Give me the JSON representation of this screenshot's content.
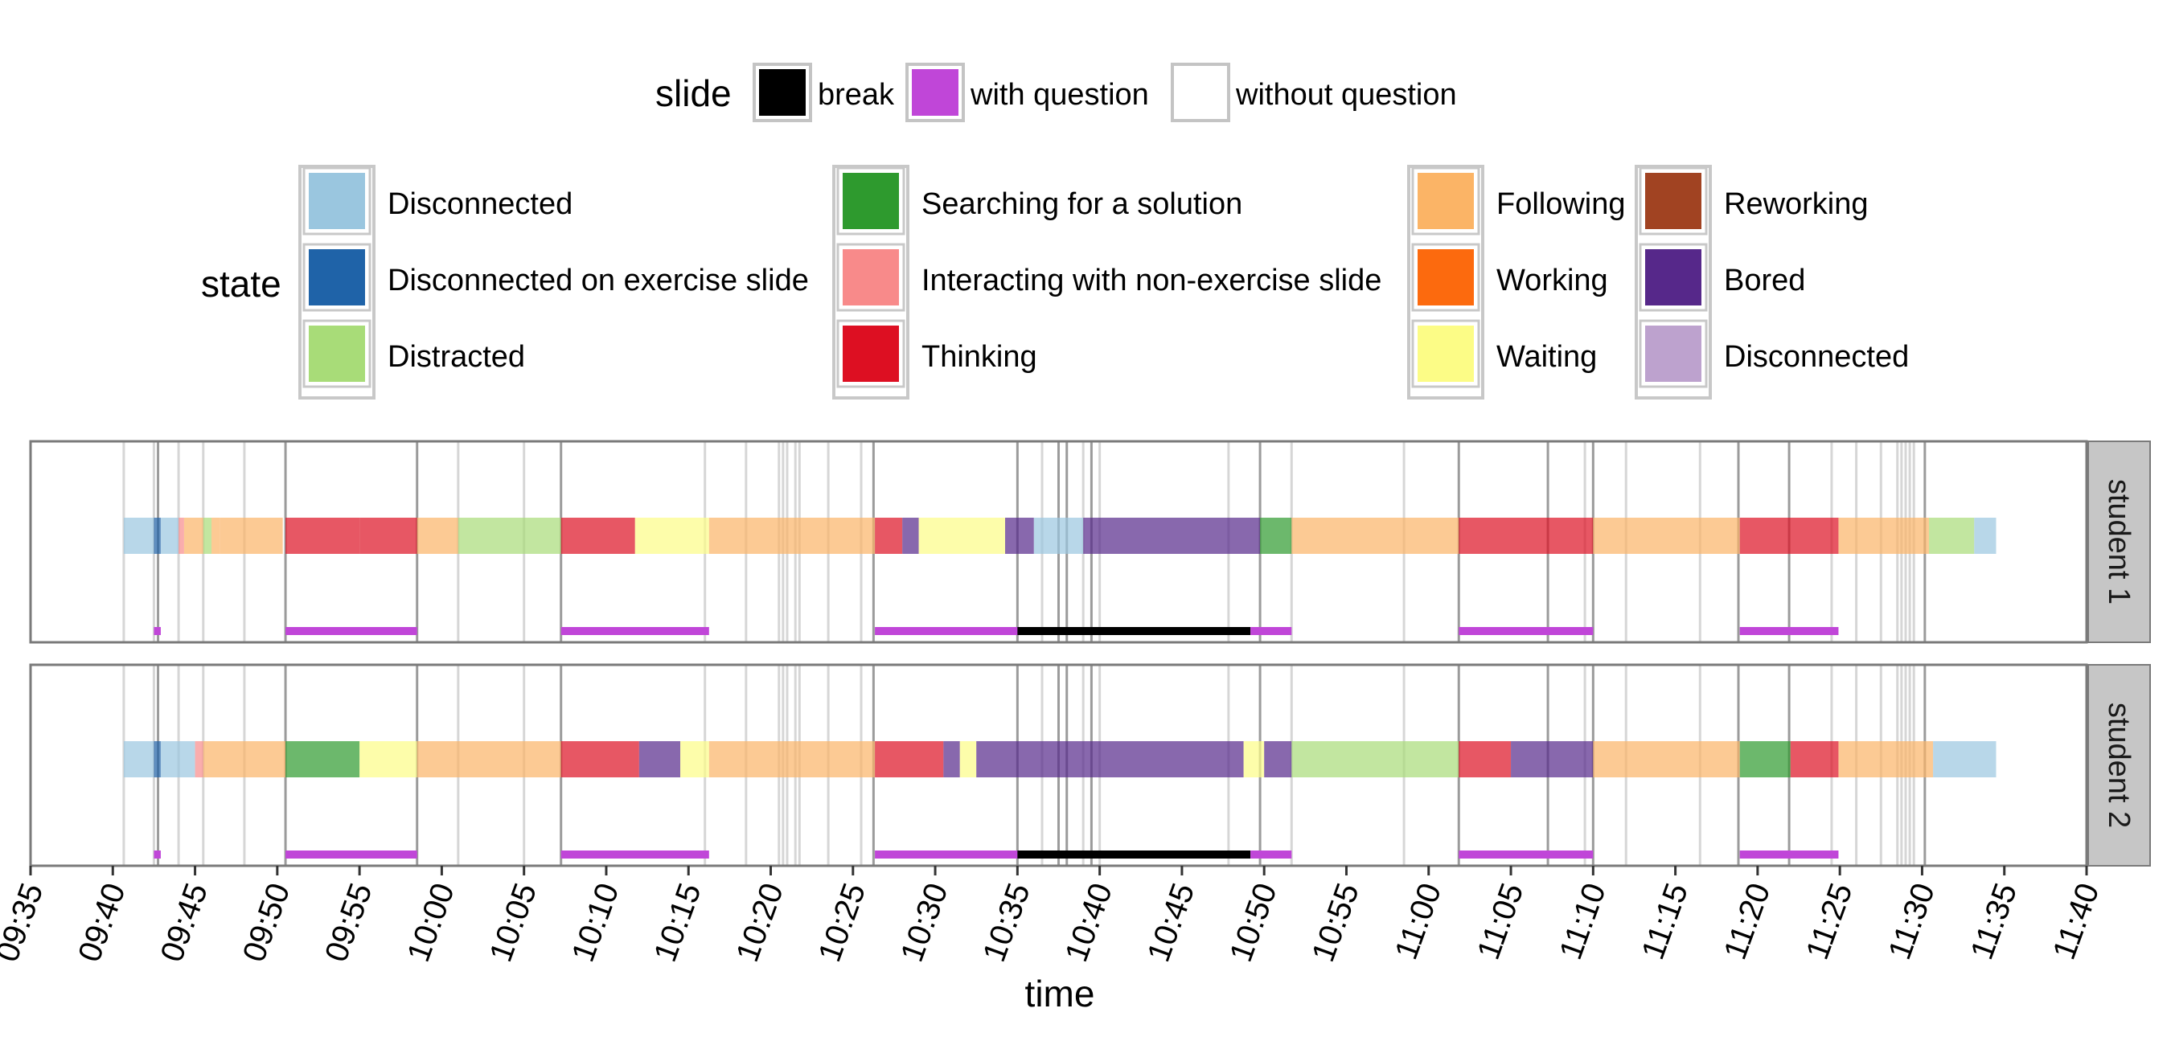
{
  "chart_data": {
    "type": "timeline",
    "xlabel": "time",
    "x_ticks": [
      "09:35",
      "09:40",
      "09:45",
      "09:50",
      "09:55",
      "10:00",
      "10:05",
      "10:10",
      "10:15",
      "10:20",
      "10:25",
      "10:30",
      "10:35",
      "10:40",
      "10:45",
      "10:50",
      "10:55",
      "11:00",
      "11:05",
      "11:10",
      "11:15",
      "11:20",
      "11:25",
      "11:30",
      "11:35",
      "11:40"
    ],
    "xlim": [
      "09:35",
      "11:40"
    ],
    "legend_slide": {
      "title": "slide",
      "items": [
        {
          "label": "break",
          "color": "#000000"
        },
        {
          "label": "with question",
          "color": "#c046d8"
        },
        {
          "label": "without question",
          "color": "#ffffff"
        }
      ]
    },
    "legend_state": {
      "title": "state",
      "items": [
        {
          "label": "Disconnected",
          "color": "#9ac6df"
        },
        {
          "label": "Disconnected on exercise slide",
          "color": "#1f63a8"
        },
        {
          "label": "Distracted",
          "color": "#a8dc78"
        },
        {
          "label": "Searching for a solution",
          "color": "#2e9a2e"
        },
        {
          "label": "Interacting with non-exercise slide",
          "color": "#f88a8a"
        },
        {
          "label": "Thinking",
          "color": "#dd0f22"
        },
        {
          "label": "Following",
          "color": "#fbb466"
        },
        {
          "label": "Working",
          "color": "#fc6a0e"
        },
        {
          "label": "Waiting",
          "color": "#fcfc86"
        },
        {
          "label": "Reworking",
          "color": "#a14322"
        },
        {
          "label": "Bored",
          "color": "#56288a"
        },
        {
          "label": "Disconnected",
          "color": "#bda2ce"
        }
      ]
    },
    "slide_boundaries_major": [
      "09:42:45",
      "09:50:30",
      "09:58:30",
      "10:07:15",
      "10:26:15",
      "10:35:00",
      "10:37:30",
      "10:38:00",
      "10:39:30",
      "10:49:45",
      "11:01:50",
      "11:07:15",
      "11:10:00",
      "11:18:50",
      "11:21:55",
      "11:30:10"
    ],
    "slide_boundaries_minor": [
      "09:40:40",
      "09:42:30",
      "09:44:00",
      "09:45:30",
      "09:48:00",
      "10:01:00",
      "10:05:00",
      "10:16:00",
      "10:18:30",
      "10:20:30",
      "10:20:45",
      "10:21:00",
      "10:21:30",
      "10:21:45",
      "10:23:30",
      "10:25:30",
      "10:36:30",
      "10:39:00",
      "10:40:00",
      "10:47:50",
      "10:51:40",
      "10:58:30",
      "11:09:30",
      "11:12:00",
      "11:16:30",
      "11:24:30",
      "11:26:00",
      "11:27:30",
      "11:28:30",
      "11:28:45",
      "11:29:00",
      "11:29:15",
      "11:29:30"
    ],
    "panels": [
      {
        "name": "student 1",
        "slides": [
          {
            "start": "09:42:30",
            "end": "09:42:55",
            "type": "with question"
          },
          {
            "start": "09:50:30",
            "end": "09:58:30",
            "type": "with question"
          },
          {
            "start": "10:07:15",
            "end": "10:16:15",
            "type": "with question"
          },
          {
            "start": "10:26:20",
            "end": "10:35:00",
            "type": "with question"
          },
          {
            "start": "10:35:00",
            "end": "10:49:10",
            "type": "break"
          },
          {
            "start": "10:49:10",
            "end": "10:51:40",
            "type": "with question"
          },
          {
            "start": "11:01:50",
            "end": "11:10:00",
            "type": "with question"
          },
          {
            "start": "11:18:55",
            "end": "11:24:55",
            "type": "with question"
          }
        ],
        "states": [
          {
            "start": "09:40:40",
            "end": "09:42:30",
            "state": "Disconnected"
          },
          {
            "start": "09:42:30",
            "end": "09:42:55",
            "state": "Disconnected on exercise slide"
          },
          {
            "start": "09:42:55",
            "end": "09:44:00",
            "state": "Disconnected"
          },
          {
            "start": "09:44:00",
            "end": "09:44:20",
            "state": "Interacting with non-exercise slide"
          },
          {
            "start": "09:44:20",
            "end": "09:45:30",
            "state": "Following"
          },
          {
            "start": "09:45:30",
            "end": "09:46:00",
            "state": "Distracted"
          },
          {
            "start": "09:46:00",
            "end": "09:46:30",
            "state": "Following"
          },
          {
            "start": "09:46:30",
            "end": "09:50:20",
            "state": "Following"
          },
          {
            "start": "09:50:30",
            "end": "09:55:00",
            "state": "Thinking"
          },
          {
            "start": "09:55:00",
            "end": "09:58:30",
            "state": "Thinking"
          },
          {
            "start": "09:58:30",
            "end": "10:01:00",
            "state": "Following"
          },
          {
            "start": "10:01:00",
            "end": "10:07:15",
            "state": "Distracted"
          },
          {
            "start": "10:07:15",
            "end": "10:11:45",
            "state": "Thinking"
          },
          {
            "start": "10:11:45",
            "end": "10:16:15",
            "state": "Waiting"
          },
          {
            "start": "10:16:15",
            "end": "10:26:20",
            "state": "Following"
          },
          {
            "start": "10:26:20",
            "end": "10:28:00",
            "state": "Thinking"
          },
          {
            "start": "10:28:00",
            "end": "10:29:00",
            "state": "Bored"
          },
          {
            "start": "10:29:00",
            "end": "10:34:15",
            "state": "Waiting"
          },
          {
            "start": "10:34:15",
            "end": "10:36:00",
            "state": "Bored"
          },
          {
            "start": "10:36:00",
            "end": "10:39:00",
            "state": "Disconnected"
          },
          {
            "start": "10:39:00",
            "end": "10:49:45",
            "state": "Bored"
          },
          {
            "start": "10:49:45",
            "end": "10:51:40",
            "state": "Searching for a solution"
          },
          {
            "start": "10:51:40",
            "end": "11:01:50",
            "state": "Following"
          },
          {
            "start": "11:01:50",
            "end": "11:10:00",
            "state": "Thinking"
          },
          {
            "start": "11:10:00",
            "end": "11:18:55",
            "state": "Following"
          },
          {
            "start": "11:18:55",
            "end": "11:24:55",
            "state": "Thinking"
          },
          {
            "start": "11:24:55",
            "end": "11:30:25",
            "state": "Following"
          },
          {
            "start": "11:30:25",
            "end": "11:33:10",
            "state": "Distracted"
          },
          {
            "start": "11:33:10",
            "end": "11:34:30",
            "state": "Disconnected"
          }
        ]
      },
      {
        "name": "student 2",
        "slides": [
          {
            "start": "09:42:30",
            "end": "09:42:55",
            "type": "with question"
          },
          {
            "start": "09:50:30",
            "end": "09:58:30",
            "type": "with question"
          },
          {
            "start": "10:07:15",
            "end": "10:16:15",
            "type": "with question"
          },
          {
            "start": "10:26:20",
            "end": "10:35:00",
            "type": "with question"
          },
          {
            "start": "10:35:00",
            "end": "10:49:10",
            "type": "break"
          },
          {
            "start": "10:49:10",
            "end": "10:51:40",
            "type": "with question"
          },
          {
            "start": "11:01:50",
            "end": "11:10:00",
            "type": "with question"
          },
          {
            "start": "11:18:55",
            "end": "11:24:55",
            "type": "with question"
          }
        ],
        "states": [
          {
            "start": "09:40:40",
            "end": "09:42:30",
            "state": "Disconnected"
          },
          {
            "start": "09:42:30",
            "end": "09:42:55",
            "state": "Disconnected on exercise slide"
          },
          {
            "start": "09:42:55",
            "end": "09:45:00",
            "state": "Disconnected"
          },
          {
            "start": "09:45:00",
            "end": "09:45:30",
            "state": "Interacting with non-exercise slide"
          },
          {
            "start": "09:45:30",
            "end": "09:50:30",
            "state": "Following"
          },
          {
            "start": "09:50:30",
            "end": "09:55:00",
            "state": "Searching for a solution"
          },
          {
            "start": "09:55:00",
            "end": "09:58:30",
            "state": "Waiting"
          },
          {
            "start": "09:58:30",
            "end": "10:07:15",
            "state": "Following"
          },
          {
            "start": "10:07:15",
            "end": "10:12:00",
            "state": "Thinking"
          },
          {
            "start": "10:12:00",
            "end": "10:14:30",
            "state": "Bored"
          },
          {
            "start": "10:14:30",
            "end": "10:16:15",
            "state": "Waiting"
          },
          {
            "start": "10:16:15",
            "end": "10:26:20",
            "state": "Following"
          },
          {
            "start": "10:26:20",
            "end": "10:30:30",
            "state": "Thinking"
          },
          {
            "start": "10:30:30",
            "end": "10:31:30",
            "state": "Bored"
          },
          {
            "start": "10:31:30",
            "end": "10:32:30",
            "state": "Waiting"
          },
          {
            "start": "10:32:30",
            "end": "10:48:45",
            "state": "Bored"
          },
          {
            "start": "10:48:45",
            "end": "10:50:00",
            "state": "Waiting"
          },
          {
            "start": "10:50:00",
            "end": "10:51:40",
            "state": "Bored"
          },
          {
            "start": "10:51:40",
            "end": "11:01:50",
            "state": "Distracted"
          },
          {
            "start": "11:01:50",
            "end": "11:05:00",
            "state": "Thinking"
          },
          {
            "start": "11:05:00",
            "end": "11:10:00",
            "state": "Bored"
          },
          {
            "start": "11:10:00",
            "end": "11:18:55",
            "state": "Following"
          },
          {
            "start": "11:18:55",
            "end": "11:22:00",
            "state": "Searching for a solution"
          },
          {
            "start": "11:22:00",
            "end": "11:24:55",
            "state": "Thinking"
          },
          {
            "start": "11:24:55",
            "end": "11:30:40",
            "state": "Following"
          },
          {
            "start": "11:30:40",
            "end": "11:34:30",
            "state": "Disconnected"
          }
        ]
      }
    ]
  }
}
